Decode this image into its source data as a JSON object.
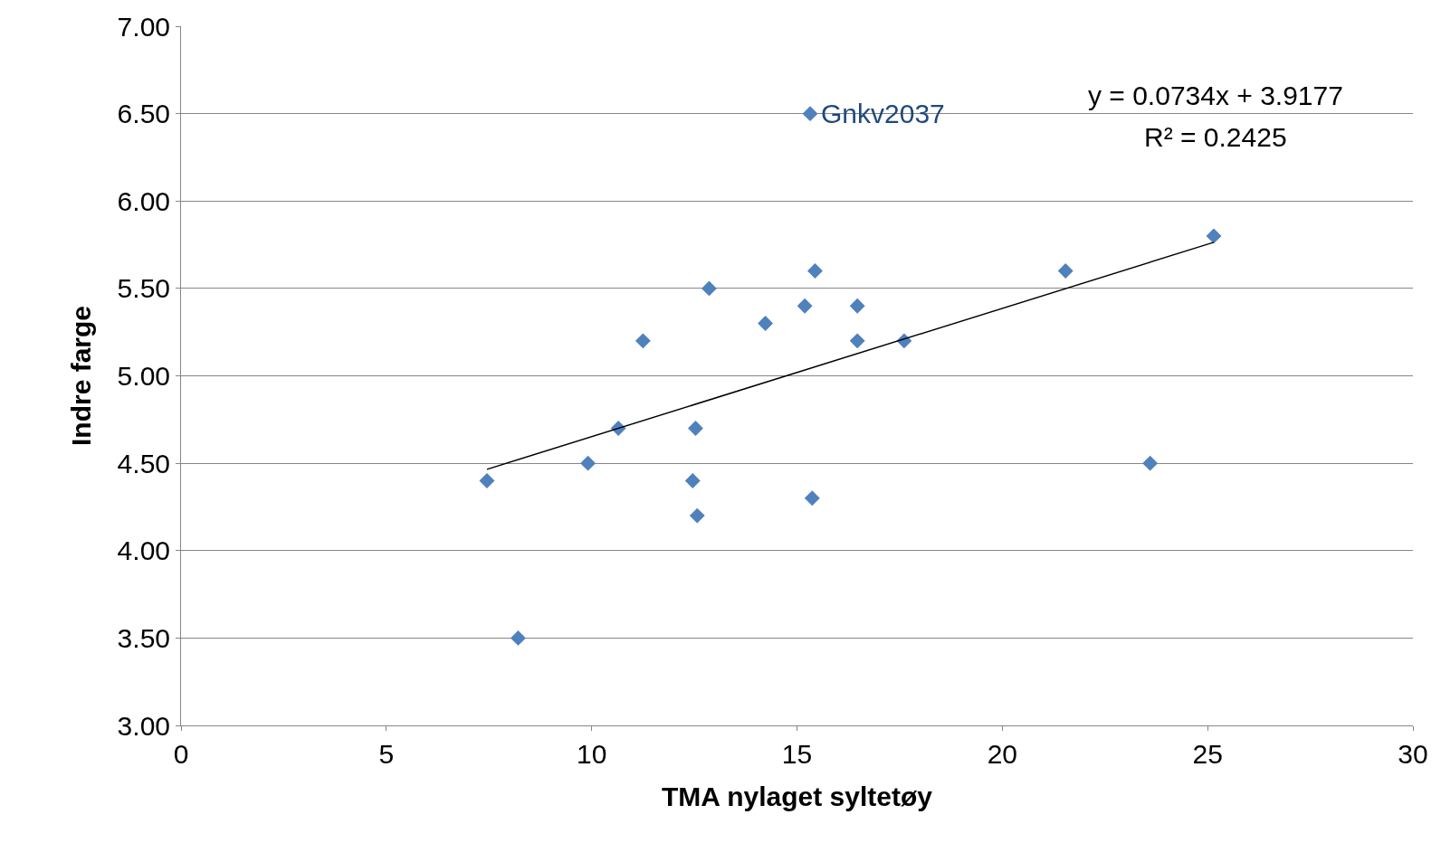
{
  "chart_data": {
    "type": "scatter",
    "xlabel": "TMA nylaget syltetøy",
    "ylabel": "Indre farge",
    "xlim": [
      0,
      30
    ],
    "xticks": [
      0,
      5,
      10,
      15,
      20,
      25,
      30
    ],
    "ylim": [
      3,
      7
    ],
    "yticks": [
      {
        "value": 3,
        "label": "3.00"
      },
      {
        "value": 3.5,
        "label": "3.50"
      },
      {
        "value": 4,
        "label": "4.00"
      },
      {
        "value": 4.5,
        "label": "4.50"
      },
      {
        "value": 5,
        "label": "5.00"
      },
      {
        "value": 5.5,
        "label": "5.50"
      },
      {
        "value": 6,
        "label": "6.00"
      },
      {
        "value": 6.5,
        "label": "6.50"
      },
      {
        "value": 7,
        "label": "7.00"
      }
    ],
    "grid": "y",
    "marker": "diamond",
    "series": [
      {
        "color": "#4f81bd",
        "x": [
          7.45,
          8.21,
          9.91,
          10.65,
          11.25,
          12.46,
          12.53,
          12.57,
          12.86,
          14.23,
          15.19,
          15.32,
          15.37,
          15.44,
          16.47,
          16.47,
          17.61,
          21.54,
          23.6,
          25.15
        ],
        "values": [
          4.4,
          3.5,
          4.5,
          4.7,
          5.2,
          4.4,
          4.7,
          4.2,
          5.5,
          5.3,
          5.4,
          6.5,
          4.3,
          5.6,
          5.4,
          5.2,
          5.2,
          5.6,
          4.5,
          5.8
        ]
      },
      {
        "type": "line",
        "color": "#000000",
        "marker": "none",
        "x": [
          7.45,
          25.15
        ],
        "values": [
          4.465,
          5.764
        ]
      }
    ],
    "annotations": [
      {
        "text": "Gnkv2037",
        "x": 15.32,
        "y": 6.5
      },
      "y = 0.0734x + 3.9177",
      "R² = 0.2425"
    ]
  }
}
